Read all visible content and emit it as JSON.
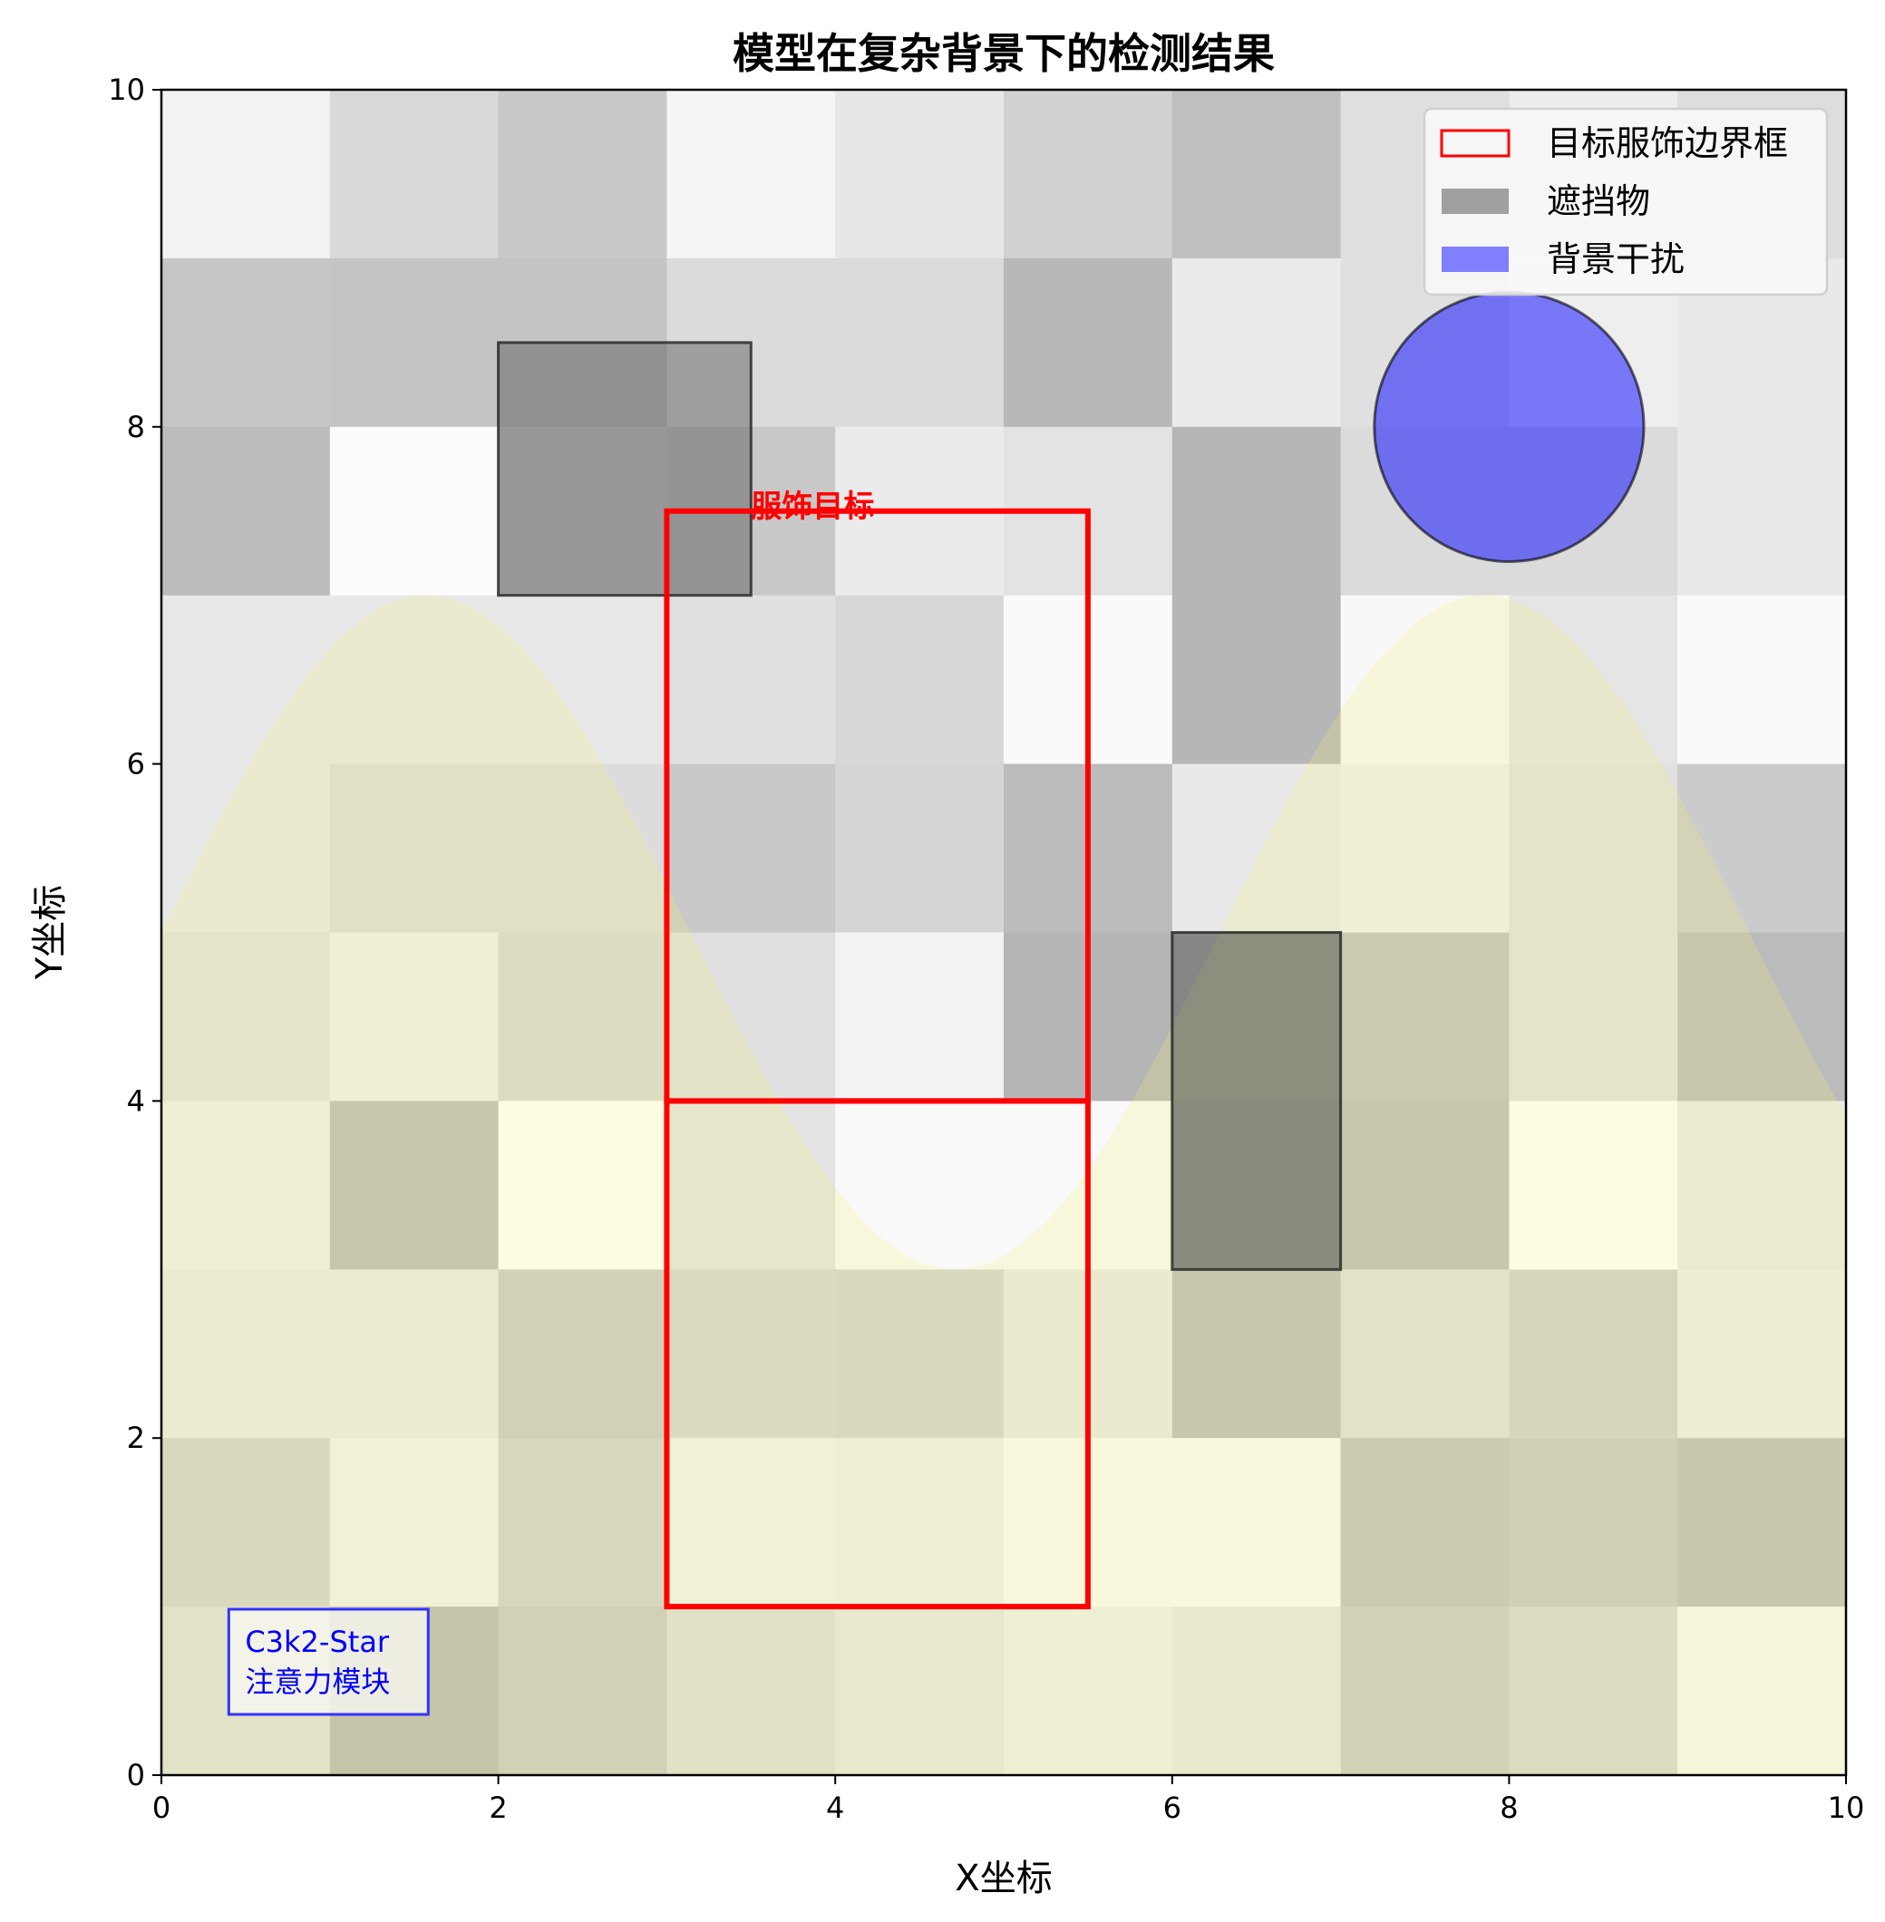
{
  "chart_data": {
    "type": "heatmap",
    "title": "模型在复杂背景下的检测结果",
    "xlabel": "X坐标",
    "ylabel": "Y坐标",
    "xlim": [
      0,
      10
    ],
    "ylim": [
      0,
      10
    ],
    "xticks": [
      "0",
      "2",
      "4",
      "6",
      "8",
      "10"
    ],
    "yticks": [
      "0",
      "2",
      "4",
      "6",
      "8",
      "10"
    ],
    "grid": false,
    "background_grid_gray_0_255_rows_top_to_bottom": [
      [
        242,
        217,
        201,
        244,
        231,
        209,
        191,
        223,
        236,
        221
      ],
      [
        198,
        196,
        196,
        219,
        219,
        184,
        235,
        224,
        238,
        233
      ],
      [
        188,
        251,
        208,
        200,
        235,
        227,
        182,
        219,
        219,
        233
      ],
      [
        232,
        232,
        232,
        224,
        215,
        250,
        182,
        248,
        229,
        250
      ],
      [
        232,
        220,
        220,
        201,
        213,
        187,
        233,
        240,
        224,
        203
      ],
      [
        224,
        239,
        215,
        223,
        243,
        181,
        176,
        192,
        224,
        187
      ],
      [
        239,
        188,
        255,
        227,
        249,
        249,
        170,
        188,
        255,
        234
      ],
      [
        233,
        233,
        200,
        213,
        210,
        232,
        188,
        222,
        207,
        238
      ],
      [
        211,
        241,
        208,
        241,
        239,
        250,
        250,
        193,
        199,
        189
      ],
      [
        222,
        184,
        200,
        221,
        230,
        239,
        231,
        201,
        214,
        247
      ]
    ],
    "background_wave": {
      "baseline": 5,
      "amplitude": 2,
      "color": "#f0f078"
    },
    "bounding_boxes": [
      {
        "x0": 3,
        "y0": 1,
        "x1": 5.5,
        "y1": 4
      },
      {
        "x0": 3,
        "y0": 4,
        "x1": 5.5,
        "y1": 7.5
      }
    ],
    "bbox_label": {
      "text": "服饰目标",
      "x": 3.5,
      "y": 7.5,
      "color": "#ff0000"
    },
    "occlusions": [
      {
        "x0": 2,
        "y0": 7,
        "x1": 3.5,
        "y1": 8.5
      },
      {
        "x0": 6,
        "y0": 3,
        "x1": 7,
        "y1": 5
      }
    ],
    "interference": {
      "cx": 8,
      "cy": 8,
      "r": 0.8,
      "color": "#0000ff"
    },
    "annotation": {
      "lines": [
        "C3k2-Star",
        "注意力模块"
      ],
      "x": 0.4,
      "y": 0.5,
      "color": "#0000ff"
    },
    "legend": {
      "position": "top-right",
      "entries": [
        {
          "label": "目标服饰边界框",
          "color": "#ff0000"
        },
        {
          "label": "遮挡物",
          "color": "#a0a0a0"
        },
        {
          "label": "背景干扰",
          "color": "#7f7fff"
        }
      ]
    }
  }
}
